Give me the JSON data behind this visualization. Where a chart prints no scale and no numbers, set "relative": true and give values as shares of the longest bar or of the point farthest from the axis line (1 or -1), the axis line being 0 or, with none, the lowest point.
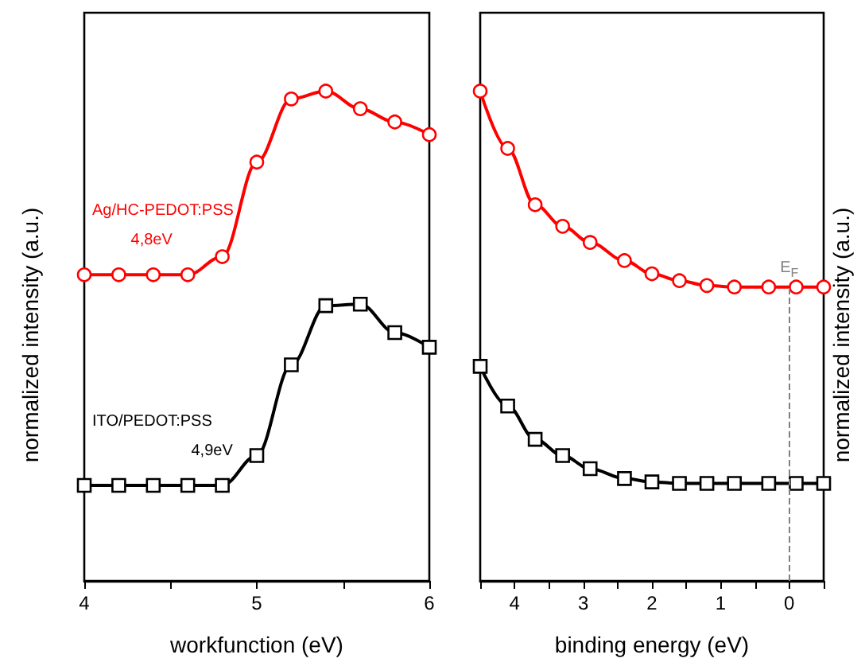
{
  "chart_data": [
    {
      "type": "line",
      "relative": true,
      "xlabel": "workfunction (eV)",
      "ylabel": "normalized intensity (a.u.)",
      "xlim": [
        4,
        6
      ],
      "xticks": [
        4,
        {
          "value": 4.5,
          "label": null
        },
        5,
        {
          "value": 5.5,
          "label": null
        },
        6
      ],
      "tick_labels": "x",
      "grid": false,
      "legend": false,
      "line_style": "solid",
      "annotations": [
        "4,8eV",
        "4,9eV"
      ],
      "series": [
        {
          "name": "Ag/HC-PEDOT:PSS",
          "color": "#ff0000",
          "marker": "circle",
          "x": [
            4.0,
            4.2,
            4.4,
            4.6,
            4.8,
            5.0,
            5.2,
            5.4,
            5.6,
            5.8,
            6.0
          ],
          "values": [
            0.625,
            0.625,
            0.625,
            0.625,
            0.662,
            0.855,
            0.984,
            1,
            0.964,
            0.937,
            0.911
          ]
        },
        {
          "name": "ITO/PEDOT:PSS",
          "color": "#000000",
          "marker": "square",
          "x": [
            4.0,
            4.2,
            4.4,
            4.6,
            4.8,
            5.0,
            5.2,
            5.4,
            5.6,
            5.8,
            6.0
          ],
          "values": [
            0.195,
            0.195,
            0.195,
            0.195,
            0.195,
            0.256,
            0.441,
            0.562,
            0.565,
            0.507,
            0.477
          ]
        }
      ]
    },
    {
      "type": "line",
      "relative": true,
      "xlabel": "binding energy (eV)",
      "y2label": "normalized intensity (a.u.)",
      "xlim": [
        4.5,
        -0.5
      ],
      "xticks": [
        {
          "value": 4.5,
          "label": null
        },
        4,
        {
          "value": 3.5,
          "label": null
        },
        3,
        {
          "value": 2.5,
          "label": null
        },
        2,
        {
          "value": 1.5,
          "label": null
        },
        1,
        {
          "value": 0.5,
          "label": null
        },
        0,
        {
          "value": -0.5,
          "label": null
        }
      ],
      "tick_labels": "x",
      "grid": false,
      "legend": false,
      "line_style": "solid",
      "ref_lines": [
        {
          "axis": "x",
          "value": 0,
          "label": "E$_{F}$",
          "color": "#808080",
          "line_style": "dashed"
        }
      ],
      "series": [
        {
          "color": "#ff0000",
          "marker": "circle",
          "x": [
            4.5,
            4.1,
            3.7,
            3.3,
            2.9,
            2.4,
            2.0,
            1.6,
            1.2,
            0.8,
            0.3,
            -0.1,
            -0.5
          ],
          "values": [
            1,
            0.883,
            0.768,
            0.724,
            0.691,
            0.654,
            0.627,
            0.613,
            0.603,
            0.6,
            0.6,
            0.6,
            0.6
          ]
        },
        {
          "color": "#000000",
          "marker": "square",
          "x": [
            4.5,
            4.1,
            3.7,
            3.3,
            2.9,
            2.4,
            2.0,
            1.6,
            1.2,
            0.8,
            0.3,
            -0.1,
            -0.5
          ],
          "values": [
            0.438,
            0.357,
            0.289,
            0.256,
            0.229,
            0.209,
            0.202,
            0.199,
            0.199,
            0.199,
            0.199,
            0.199,
            0.199
          ]
        }
      ]
    }
  ]
}
